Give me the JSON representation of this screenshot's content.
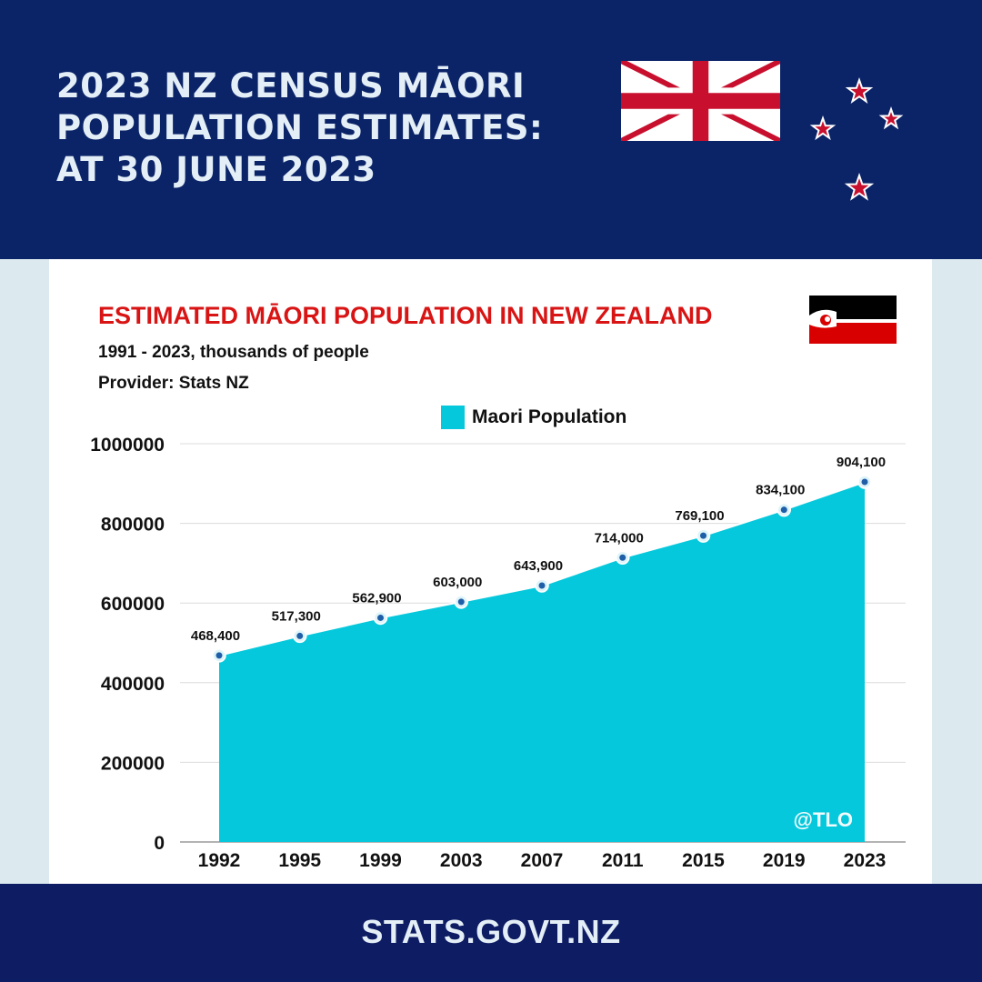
{
  "header": {
    "title_lines": [
      "2023 NZ CENSUS MĀORI",
      "POPULATION ESTIMATES:",
      "AT 30 JUNE 2023"
    ]
  },
  "icons": {
    "uk_flag": "union-jack-flag-icon",
    "stars": "southern-cross-stars-icon",
    "maori_flag": "tino-rangatiratanga-flag-icon"
  },
  "colors": {
    "header_bg": "#0b2468",
    "footer_bg": "#0e1c64",
    "area_fill": "#06c8dc",
    "title_red": "#d81414",
    "star_red": "#c8102e"
  },
  "watermark": "@TLO",
  "footer": {
    "text": "STATS.GOVT.NZ"
  },
  "chart_data": {
    "type": "area",
    "title": "ESTIMATED MĀORI POPULATION IN NEW ZEALAND",
    "subtitle": "1991 - 2023, thousands of people",
    "provider": "Provider: Stats NZ",
    "legend": "top-center",
    "grid": true,
    "ylim": [
      0,
      1000000
    ],
    "y_ticks": [
      "0",
      "200000",
      "400000",
      "600000",
      "800000",
      "1000000"
    ],
    "categories": [
      "1992",
      "1995",
      "1999",
      "2003",
      "2007",
      "2011",
      "2015",
      "2019",
      "2023"
    ],
    "series": [
      {
        "name": "Maori Population",
        "values": [
          468400,
          517300,
          562900,
          603000,
          643900,
          714000,
          769100,
          834100,
          904100
        ],
        "labels": [
          "468,400",
          "517,300",
          "562,900",
          "603,000",
          "643,900",
          "714,000",
          "769,100",
          "834,100",
          "904,100"
        ]
      }
    ]
  }
}
